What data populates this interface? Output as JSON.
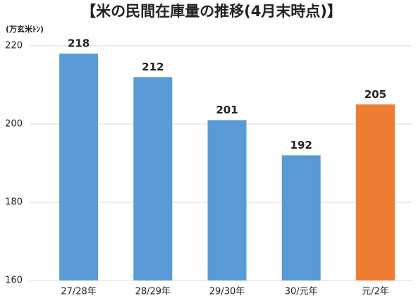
{
  "chart_data": {
    "type": "bar",
    "title": "【米の民間在庫量の推移(4月末時点)】",
    "y_axis_label": "(万玄米ﾄﾝ)",
    "categories": [
      "27/28年",
      "28/29年",
      "29/30年",
      "30/元年",
      "元/2年"
    ],
    "values": [
      218,
      212,
      201,
      192,
      205
    ],
    "colors": [
      "#5b9bd5",
      "#5b9bd5",
      "#5b9bd5",
      "#5b9bd5",
      "#ed7d31"
    ],
    "ylim": [
      160,
      220
    ],
    "yticks": [
      160,
      180,
      200,
      220
    ],
    "grid": true
  }
}
